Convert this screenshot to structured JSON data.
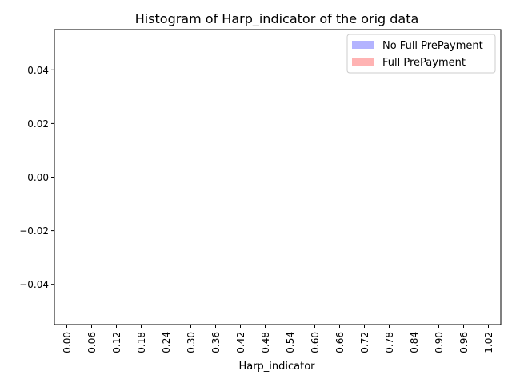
{
  "chart_data": {
    "type": "bar",
    "title": "Histogram of Harp_indicator of the orig data",
    "xlabel": "Harp_indicator",
    "ylabel": "",
    "x_ticks": [
      "0.00",
      "0.06",
      "0.12",
      "0.18",
      "0.24",
      "0.30",
      "0.36",
      "0.42",
      "0.48",
      "0.54",
      "0.60",
      "0.66",
      "0.72",
      "0.78",
      "0.84",
      "0.90",
      "0.96",
      "1.02"
    ],
    "y_ticks": [
      "0.04",
      "0.02",
      "0.00",
      "−0.02",
      "−0.04"
    ],
    "y_tick_values": [
      0.04,
      0.02,
      0.0,
      -0.02,
      -0.04
    ],
    "ylim": [
      -0.055,
      0.055
    ],
    "xlim": [
      -0.03,
      1.05
    ],
    "legend_position": "upper right",
    "grid": false,
    "series": [
      {
        "name": "No Full PrePayment",
        "color": "#b3b3ff",
        "values": []
      },
      {
        "name": "Full PrePayment",
        "color": "#ffb3b3",
        "values": []
      }
    ]
  }
}
